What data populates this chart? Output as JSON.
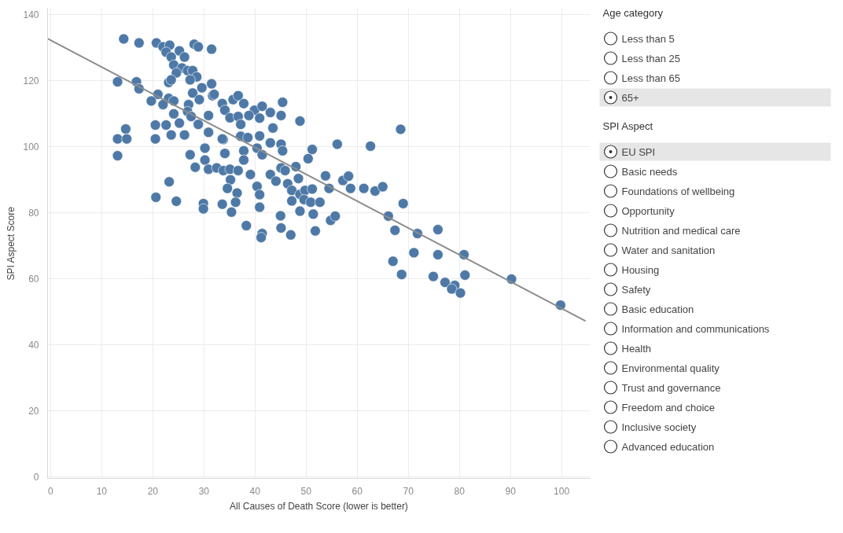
{
  "chart_data": [
    {
      "type": "scatter",
      "xlabel": "All Causes of Death Score (lower is better)",
      "ylabel": "SPI Aspect Score",
      "xlim": [
        -0.6,
        105.6
      ],
      "ylim": [
        -0.5,
        142
      ],
      "xticks": [
        0,
        10,
        20,
        30,
        40,
        50,
        60,
        70,
        80,
        90,
        100
      ],
      "yticks": [
        0,
        20,
        40,
        60,
        80,
        100,
        120,
        140
      ],
      "grid": true,
      "series": [
        {
          "color": "#4e79a7",
          "marker": "circle",
          "x": [
            14.3,
            17.3,
            20.7,
            22.0,
            23.3,
            22.6,
            23.6,
            25.2,
            26.2,
            28.1,
            28.9,
            31.5,
            24.1,
            25.7,
            26.8,
            27.8,
            28.6,
            27.3,
            24.6,
            13.1,
            16.8,
            17.3,
            23.1,
            23.6,
            31.5,
            27.8,
            29.6,
            21.0,
            19.7,
            23.1,
            24.1,
            22.0,
            27.0,
            29.1,
            31.7,
            33.6,
            35.7,
            24.1,
            26.8,
            27.5,
            30.9,
            34.1,
            35.1,
            20.5,
            22.6,
            25.2,
            28.9,
            14.7,
            13.1,
            14.9,
            20.5,
            23.6,
            26.2,
            30.9,
            33.8,
            13.1,
            27.3,
            30.2,
            34.1,
            30.2,
            28.3,
            32.0,
            36.7,
            37.8,
            45.4,
            39.9,
            41.4,
            43.0,
            45.1,
            36.7,
            38.8,
            40.9,
            48.8,
            37.2,
            43.5,
            33.6,
            37.2,
            38.6,
            40.9,
            43.0,
            45.1,
            45.4,
            40.4,
            37.8,
            41.4,
            37.8,
            51.2,
            50.4,
            48.0,
            45.1,
            56.1,
            62.6,
            68.5,
            23.2,
            20.6,
            24.6,
            30.9,
            32.5,
            33.8,
            35.1,
            36.7,
            39.1,
            40.4,
            40.9,
            40.9,
            35.2,
            34.6,
            36.5,
            36.2,
            35.4,
            33.6,
            29.9,
            29.9,
            38.3,
            41.4,
            41.2,
            45.0,
            45.1,
            47.0,
            51.8,
            43.0,
            44.1,
            45.9,
            48.5,
            46.4,
            47.2,
            48.8,
            49.8,
            51.2,
            47.2,
            49.6,
            50.9,
            52.7,
            48.8,
            51.4,
            53.8,
            57.2,
            58.3,
            54.5,
            58.7,
            61.3,
            63.5,
            65.0,
            69.0,
            54.8,
            55.7,
            66.1,
            67.4,
            71.8,
            75.8,
            71.1,
            75.8,
            80.9,
            67.0,
            68.7,
            74.9,
            77.2,
            79.1,
            78.5,
            80.2,
            81.1,
            90.2,
            99.8
          ],
          "values": [
            132.7,
            131.5,
            131.5,
            130.3,
            130.8,
            128.7,
            127.2,
            129.1,
            127.2,
            131.1,
            130.3,
            129.6,
            124.8,
            123.9,
            123.1,
            123.1,
            121.2,
            120.3,
            122.4,
            119.7,
            119.7,
            117.6,
            119.5,
            120.3,
            119.1,
            116.3,
            117.9,
            115.9,
            113.9,
            114.7,
            113.9,
            112.8,
            112.8,
            114.3,
            115.5,
            113.1,
            114.3,
            110.0,
            110.7,
            109.2,
            109.5,
            111.1,
            108.8,
            106.6,
            106.6,
            107.2,
            106.8,
            105.4,
            102.4,
            102.4,
            102.4,
            103.6,
            103.6,
            104.4,
            102.2,
            97.3,
            97.6,
            99.6,
            98.0,
            96.0,
            93.8,
            115.9,
            115.5,
            113.1,
            113.5,
            111.1,
            112.3,
            110.4,
            109.5,
            109.2,
            109.5,
            108.7,
            107.8,
            106.8,
            105.7,
            102.4,
            103.2,
            102.8,
            103.3,
            101.2,
            100.8,
            98.8,
            99.6,
            98.8,
            97.6,
            96.0,
            99.2,
            96.4,
            94.0,
            93.6,
            100.8,
            100.2,
            105.3,
            89.4,
            84.7,
            83.5,
            93.2,
            93.6,
            92.8,
            93.2,
            92.8,
            91.6,
            88.0,
            85.5,
            81.7,
            90.0,
            87.4,
            86.0,
            83.2,
            80.2,
            82.6,
            82.8,
            81.2,
            76.1,
            73.7,
            72.5,
            79.1,
            75.4,
            73.3,
            74.5,
            91.6,
            89.6,
            92.8,
            90.4,
            88.8,
            86.8,
            85.6,
            86.8,
            87.2,
            83.6,
            84.0,
            83.2,
            83.2,
            80.5,
            79.6,
            91.2,
            89.8,
            91.1,
            87.4,
            87.4,
            87.4,
            86.6,
            87.9,
            82.8,
            77.7,
            79.0,
            79.0,
            74.7,
            73.7,
            74.9,
            67.9,
            67.3,
            67.3,
            65.3,
            61.3,
            60.7,
            58.9,
            58.0,
            56.9,
            55.7,
            61.1,
            59.9,
            52.0
          ]
        },
        {
          "type": "line",
          "color": "#8c8c8c",
          "x": [
            -0.6,
            104.7
          ],
          "values": [
            132.8,
            47.2
          ]
        }
      ]
    },
    {
      "type": "other",
      "title": "Age category",
      "categories": [
        "Less than 5",
        "Less than 25",
        "Less than 65",
        "65+"
      ],
      "colors": [
        "#ffffff",
        "#ffffff",
        "#ffffff",
        "#e6e6e6"
      ]
    },
    {
      "type": "other",
      "title": "SPI Aspect",
      "categories": [
        "EU SPI",
        "Basic needs",
        "Foundations of wellbeing",
        "Opportunity",
        "Nutrition and medical care",
        "Water and sanitation",
        "Housing",
        "Safety",
        "Basic education",
        "Information and communications",
        "Health",
        "Environmental quality",
        "Trust and governance",
        "Freedom and choice",
        "Inclusive society",
        "Advanced education"
      ],
      "colors": [
        "#e6e6e6",
        "#ffffff",
        "#ffffff",
        "#ffffff",
        "#ffffff",
        "#ffffff",
        "#ffffff",
        "#ffffff",
        "#ffffff",
        "#ffffff",
        "#ffffff",
        "#ffffff",
        "#ffffff",
        "#ffffff",
        "#ffffff",
        "#ffffff"
      ]
    }
  ]
}
